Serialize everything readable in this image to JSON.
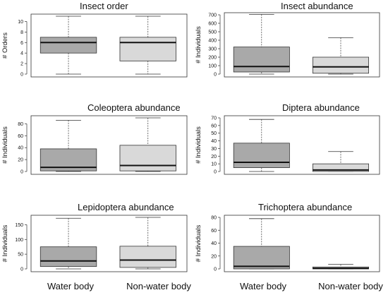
{
  "chart_data": [
    {
      "type": "box",
      "title": "Insect order",
      "ylabel": "# Orders",
      "ylim": [
        0,
        11
      ],
      "yticks": [
        0,
        2,
        4,
        6,
        8,
        10
      ],
      "categories": [
        "Water body",
        "Non-water body"
      ],
      "boxes": [
        {
          "category": "Water body",
          "min": 0,
          "q1": 4,
          "median": 6,
          "q3": 7,
          "max": 11,
          "color": "#a9a9a9"
        },
        {
          "category": "Non-water body",
          "min": 0,
          "q1": 2.5,
          "median": 6,
          "q3": 7,
          "max": 11,
          "color": "#d9d9d9"
        }
      ]
    },
    {
      "type": "box",
      "title": "Insect abundance",
      "ylabel": "# Individuals",
      "ylim": [
        0,
        700
      ],
      "yticks": [
        0,
        100,
        200,
        300,
        400,
        500,
        600,
        700
      ],
      "categories": [
        "Water body",
        "Non-water body"
      ],
      "boxes": [
        {
          "category": "Water body",
          "min": 0,
          "q1": 25,
          "median": 90,
          "q3": 320,
          "max": 705,
          "color": "#a9a9a9"
        },
        {
          "category": "Non-water body",
          "min": 0,
          "q1": 10,
          "median": 85,
          "q3": 200,
          "max": 430,
          "color": "#d9d9d9"
        }
      ]
    },
    {
      "type": "box",
      "title": "Coleoptera abundance",
      "ylabel": "# Individuals",
      "ylim": [
        0,
        90
      ],
      "yticks": [
        0,
        20,
        40,
        60,
        80
      ],
      "categories": [
        "Water body",
        "Non-water body"
      ],
      "boxes": [
        {
          "category": "Water body",
          "min": 0,
          "q1": 1,
          "median": 7,
          "q3": 38,
          "max": 86,
          "color": "#a9a9a9"
        },
        {
          "category": "Non-water body",
          "min": 0,
          "q1": 1,
          "median": 10,
          "q3": 44,
          "max": 90,
          "color": "#d9d9d9"
        }
      ]
    },
    {
      "type": "box",
      "title": "Diptera abundance",
      "ylabel": "# Individuals",
      "ylim": [
        0,
        70
      ],
      "yticks": [
        0,
        10,
        20,
        30,
        40,
        50,
        60,
        70
      ],
      "categories": [
        "Water body",
        "Non-water body"
      ],
      "boxes": [
        {
          "category": "Water body",
          "min": 0,
          "q1": 5,
          "median": 12,
          "q3": 37,
          "max": 68,
          "color": "#a9a9a9"
        },
        {
          "category": "Non-water body",
          "min": 0,
          "q1": 0,
          "median": 2,
          "q3": 10,
          "max": 26,
          "color": "#d9d9d9"
        }
      ]
    },
    {
      "type": "box",
      "title": "Lepidoptera abundance",
      "ylabel": "# Individuals",
      "ylim": [
        0,
        175
      ],
      "yticks": [
        0,
        50,
        100,
        150
      ],
      "categories": [
        "Water body",
        "Non-water body"
      ],
      "boxes": [
        {
          "category": "Water body",
          "min": 0,
          "q1": 8,
          "median": 27,
          "q3": 75,
          "max": 172,
          "color": "#a9a9a9"
        },
        {
          "category": "Non-water body",
          "min": 0,
          "q1": 5,
          "median": 30,
          "q3": 77,
          "max": 175,
          "color": "#d9d9d9"
        }
      ]
    },
    {
      "type": "box",
      "title": "Trichoptera abundance",
      "ylabel": "# Individuals",
      "ylim": [
        0,
        80
      ],
      "yticks": [
        0,
        20,
        40,
        60,
        80
      ],
      "categories": [
        "Water body",
        "Non-water body"
      ],
      "boxes": [
        {
          "category": "Water body",
          "min": 0,
          "q1": 0,
          "median": 4,
          "q3": 35,
          "max": 78,
          "color": "#a9a9a9"
        },
        {
          "category": "Non-water body",
          "min": 0,
          "q1": 0,
          "median": 1,
          "q3": 3,
          "max": 7,
          "color": "#d9d9d9"
        }
      ]
    }
  ],
  "x_categories": [
    "Water body",
    "Non-water body"
  ]
}
